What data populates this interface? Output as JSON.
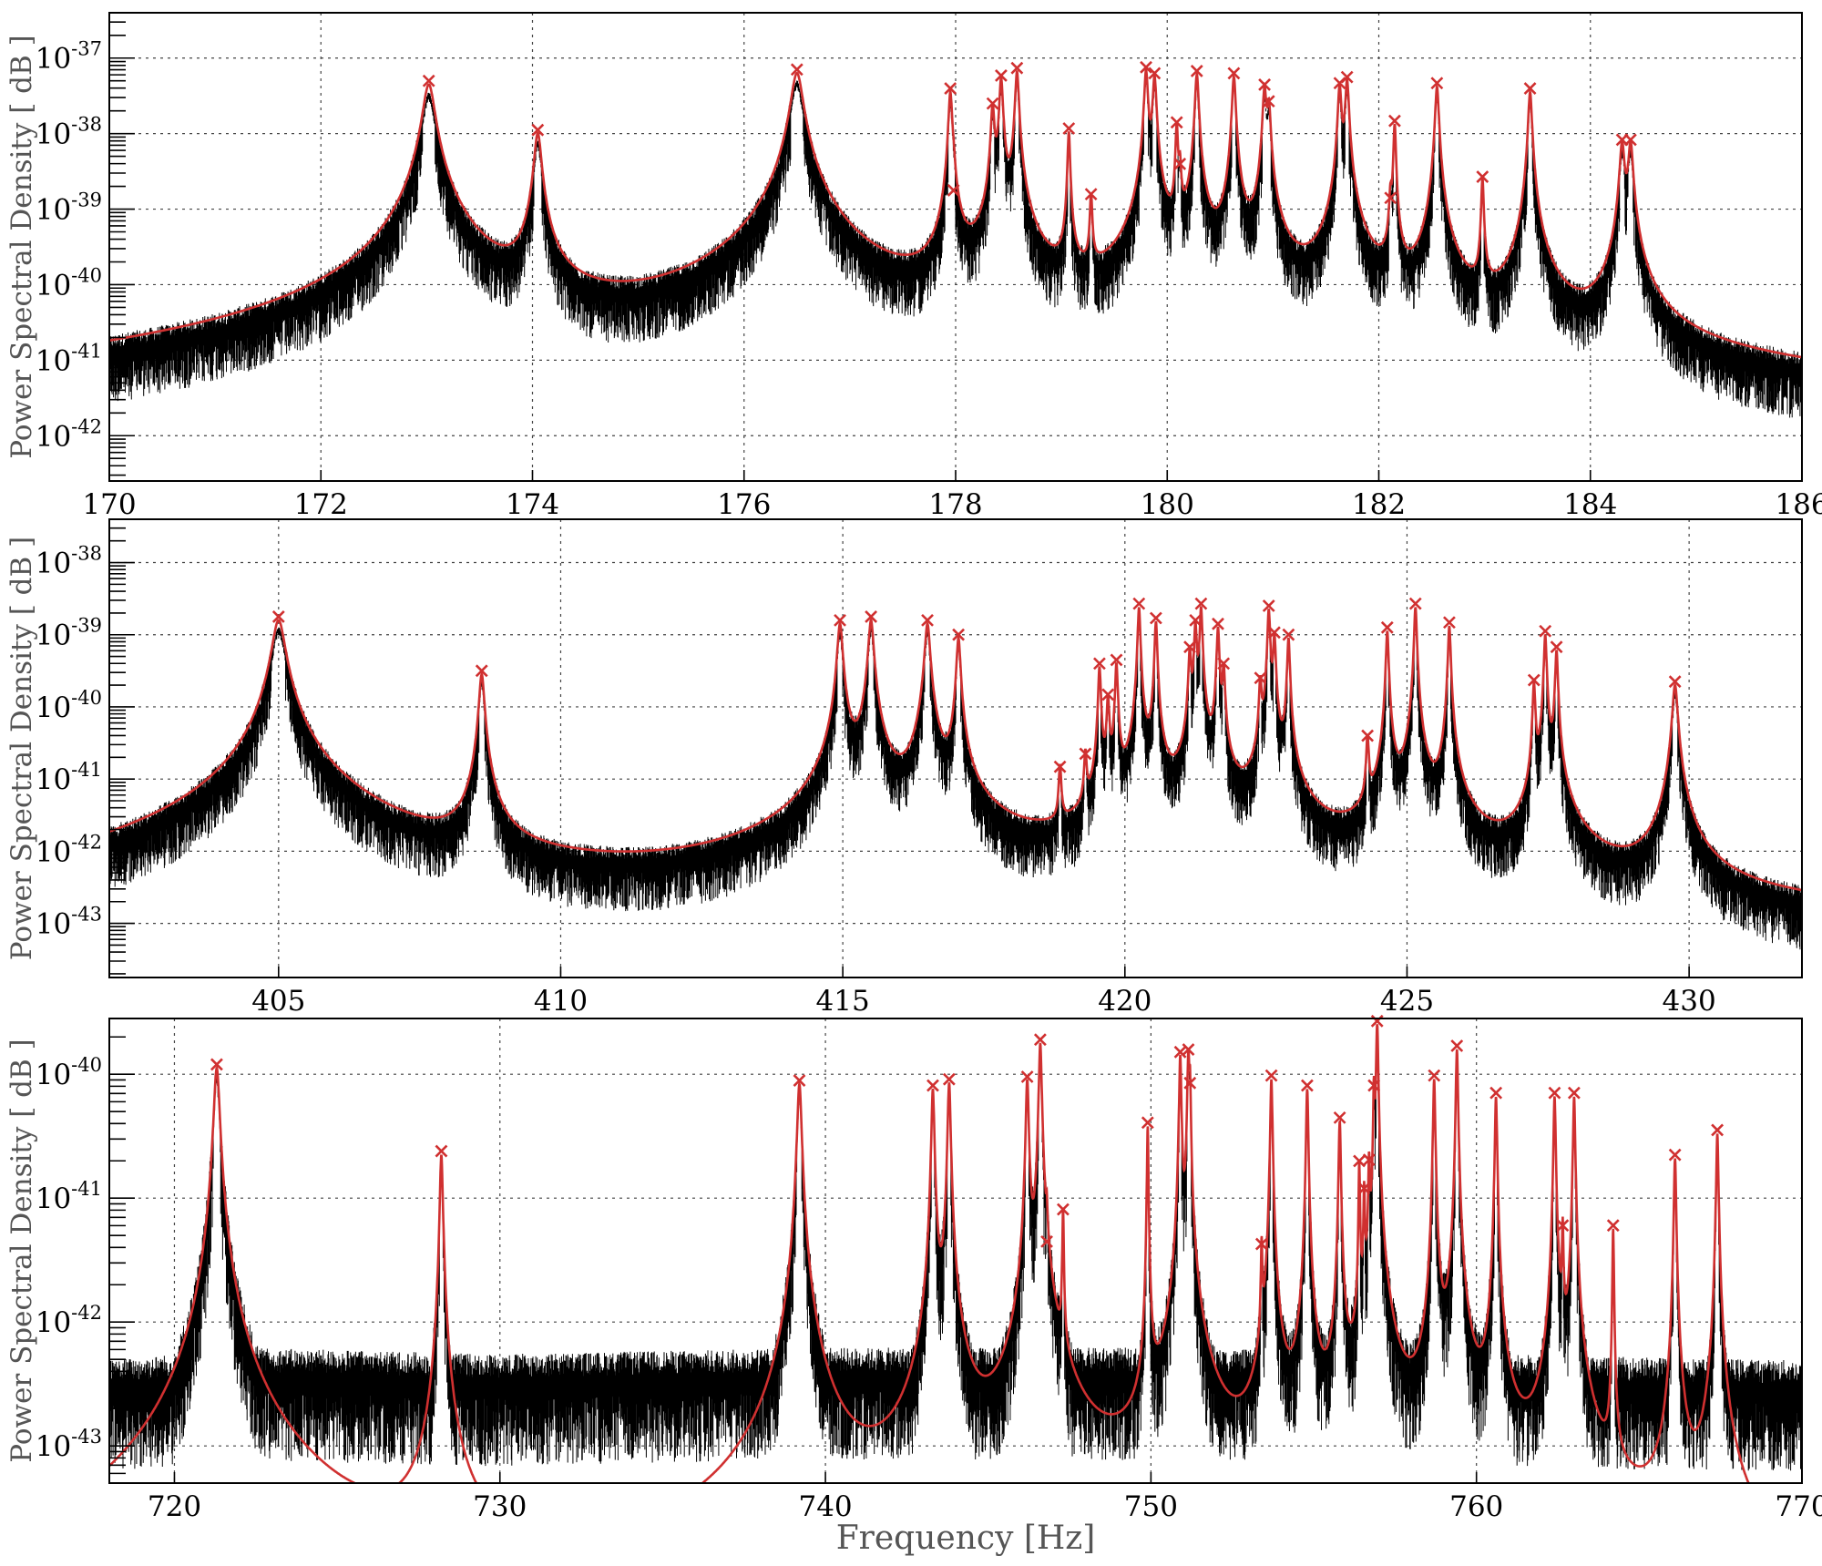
{
  "figure": {
    "xlabel": "Frequency [Hz]",
    "colors": {
      "data": "#000000",
      "fit": "#d03030",
      "marker": "#d03030"
    }
  },
  "chart_data": [
    {
      "type": "line",
      "ylabel": "Power Spectral Density [ dB ]",
      "xlim": [
        170,
        186
      ],
      "x_ticks": [
        170,
        172,
        174,
        176,
        178,
        180,
        182,
        184,
        186
      ],
      "y_scale": "log",
      "ylim_exp": [
        -42.6,
        -36.4
      ],
      "y_tick_exponents": [
        -42,
        -41,
        -40,
        -39,
        -38,
        -37
      ],
      "y_tick_labels": [
        "10-42",
        "10-41",
        "10-40",
        "10-39",
        "10-38",
        "10-37"
      ],
      "grid": true,
      "floor_exp": -42.75,
      "data_noise_floor_exp": [
        [
          170,
          -42.15
        ],
        [
          172,
          -41.9
        ],
        [
          174,
          -41.6
        ],
        [
          176,
          -41.4
        ],
        [
          178,
          -41.2
        ],
        [
          180,
          -41.2
        ],
        [
          182,
          -41.3
        ],
        [
          184,
          -41.4
        ],
        [
          186,
          -41.9
        ]
      ],
      "peaks": [
        {
          "f": 173.02,
          "exp": -37.35,
          "w": 0.05
        },
        {
          "f": 174.05,
          "exp": -38.0,
          "w": 0.03
        },
        {
          "f": 176.5,
          "exp": -37.2,
          "w": 0.05
        },
        {
          "f": 177.95,
          "exp": -37.45,
          "w": 0.015
        },
        {
          "f": 177.98,
          "exp": -38.8,
          "w": 0.01
        },
        {
          "f": 178.35,
          "exp": -37.65,
          "w": 0.015
        },
        {
          "f": 178.43,
          "exp": -37.28,
          "w": 0.015
        },
        {
          "f": 178.58,
          "exp": -37.18,
          "w": 0.015
        },
        {
          "f": 179.07,
          "exp": -37.98,
          "w": 0.01
        },
        {
          "f": 179.28,
          "exp": -38.85,
          "w": 0.01
        },
        {
          "f": 179.8,
          "exp": -37.17,
          "w": 0.015
        },
        {
          "f": 179.88,
          "exp": -37.25,
          "w": 0.015
        },
        {
          "f": 180.09,
          "exp": -37.9,
          "w": 0.01
        },
        {
          "f": 180.12,
          "exp": -38.45,
          "w": 0.01
        },
        {
          "f": 180.28,
          "exp": -37.22,
          "w": 0.015
        },
        {
          "f": 180.63,
          "exp": -37.25,
          "w": 0.015
        },
        {
          "f": 180.92,
          "exp": -37.4,
          "w": 0.015
        },
        {
          "f": 180.96,
          "exp": -37.62,
          "w": 0.015
        },
        {
          "f": 181.63,
          "exp": -37.38,
          "w": 0.015
        },
        {
          "f": 181.7,
          "exp": -37.3,
          "w": 0.015
        },
        {
          "f": 182.11,
          "exp": -38.9,
          "w": 0.01
        },
        {
          "f": 182.15,
          "exp": -37.88,
          "w": 0.01
        },
        {
          "f": 182.55,
          "exp": -37.38,
          "w": 0.015
        },
        {
          "f": 182.98,
          "exp": -38.62,
          "w": 0.01
        },
        {
          "f": 183.43,
          "exp": -37.45,
          "w": 0.015
        },
        {
          "f": 184.3,
          "exp": -38.13,
          "w": 0.02
        },
        {
          "f": 184.38,
          "exp": -38.13,
          "w": 0.02
        }
      ]
    },
    {
      "type": "line",
      "ylabel": "Power Spectral Density [ dB ]",
      "xlim": [
        402,
        432
      ],
      "x_ticks": [
        405,
        410,
        415,
        420,
        425,
        430
      ],
      "y_scale": "log",
      "ylim_exp": [
        -43.75,
        -37.4
      ],
      "y_tick_exponents": [
        -43,
        -42,
        -41,
        -40,
        -39,
        -38
      ],
      "y_tick_labels": [
        "10-43",
        "10-42",
        "10-41",
        "10-40",
        "10-39",
        "10-38"
      ],
      "grid": true,
      "floor_exp": -43.4,
      "data_noise_floor_exp": [
        [
          402,
          -41.9
        ],
        [
          405,
          -42.6
        ],
        [
          408,
          -42.75
        ],
        [
          410,
          -42.85
        ],
        [
          414,
          -42.8
        ],
        [
          418,
          -42.3
        ],
        [
          421,
          -41.6
        ],
        [
          424,
          -42.0
        ],
        [
          428,
          -42.6
        ],
        [
          432,
          -42.85
        ]
      ],
      "peaks": [
        {
          "f": 405.0,
          "exp": -38.8,
          "w": 0.1
        },
        {
          "f": 408.6,
          "exp": -39.55,
          "w": 0.04
        },
        {
          "f": 414.95,
          "exp": -38.85,
          "w": 0.04
        },
        {
          "f": 415.5,
          "exp": -38.8,
          "w": 0.04
        },
        {
          "f": 416.5,
          "exp": -38.85,
          "w": 0.04
        },
        {
          "f": 417.05,
          "exp": -39.05,
          "w": 0.03
        },
        {
          "f": 418.85,
          "exp": -40.88,
          "w": 0.02
        },
        {
          "f": 419.3,
          "exp": -40.7,
          "w": 0.02
        },
        {
          "f": 419.55,
          "exp": -39.45,
          "w": 0.02
        },
        {
          "f": 419.7,
          "exp": -39.88,
          "w": 0.02
        },
        {
          "f": 419.85,
          "exp": -39.4,
          "w": 0.02
        },
        {
          "f": 420.25,
          "exp": -38.62,
          "w": 0.02
        },
        {
          "f": 420.55,
          "exp": -38.82,
          "w": 0.02
        },
        {
          "f": 421.15,
          "exp": -39.22,
          "w": 0.02
        },
        {
          "f": 421.25,
          "exp": -38.85,
          "w": 0.02
        },
        {
          "f": 421.35,
          "exp": -38.62,
          "w": 0.02
        },
        {
          "f": 421.65,
          "exp": -38.9,
          "w": 0.02
        },
        {
          "f": 421.75,
          "exp": -39.45,
          "w": 0.02
        },
        {
          "f": 422.4,
          "exp": -39.65,
          "w": 0.02
        },
        {
          "f": 422.55,
          "exp": -38.65,
          "w": 0.02
        },
        {
          "f": 422.65,
          "exp": -39.02,
          "w": 0.02
        },
        {
          "f": 422.9,
          "exp": -39.05,
          "w": 0.02
        },
        {
          "f": 424.3,
          "exp": -40.45,
          "w": 0.02
        },
        {
          "f": 424.65,
          "exp": -38.95,
          "w": 0.02
        },
        {
          "f": 425.15,
          "exp": -38.62,
          "w": 0.02
        },
        {
          "f": 425.75,
          "exp": -38.88,
          "w": 0.02
        },
        {
          "f": 427.25,
          "exp": -39.68,
          "w": 0.02
        },
        {
          "f": 427.45,
          "exp": -39.0,
          "w": 0.02
        },
        {
          "f": 427.65,
          "exp": -39.22,
          "w": 0.02
        },
        {
          "f": 429.75,
          "exp": -39.7,
          "w": 0.04
        }
      ]
    },
    {
      "type": "line",
      "ylabel": "Power Spectral Density [ dB ]",
      "xlim": [
        718,
        770
      ],
      "x_ticks": [
        720,
        730,
        740,
        750,
        760,
        770
      ],
      "y_scale": "log",
      "ylim_exp": [
        -43.3,
        -39.55
      ],
      "y_tick_exponents": [
        -43,
        -42,
        -41,
        -40
      ],
      "y_tick_labels": [
        "10-43",
        "10-42",
        "10-41",
        "10-40"
      ],
      "grid": true,
      "floor_exp": -45.5,
      "data_noise_floor_exp": [
        [
          718,
          -42.5
        ],
        [
          722,
          -42.4
        ],
        [
          730,
          -42.45
        ],
        [
          740,
          -42.4
        ],
        [
          750,
          -42.4
        ],
        [
          760,
          -42.45
        ],
        [
          770,
          -42.5
        ]
      ],
      "peaks": [
        {
          "f": 721.3,
          "exp": -39.95,
          "w": 0.08
        },
        {
          "f": 728.2,
          "exp": -40.65,
          "w": 0.04
        },
        {
          "f": 739.2,
          "exp": -40.08,
          "w": 0.06
        },
        {
          "f": 743.3,
          "exp": -40.12,
          "w": 0.04
        },
        {
          "f": 743.8,
          "exp": -40.07,
          "w": 0.04
        },
        {
          "f": 746.2,
          "exp": -40.05,
          "w": 0.04
        },
        {
          "f": 746.6,
          "exp": -39.75,
          "w": 0.04
        },
        {
          "f": 746.8,
          "exp": -41.38,
          "w": 0.02
        },
        {
          "f": 747.3,
          "exp": -41.12,
          "w": 0.02
        },
        {
          "f": 749.9,
          "exp": -40.42,
          "w": 0.02
        },
        {
          "f": 750.9,
          "exp": -39.85,
          "w": 0.03
        },
        {
          "f": 751.15,
          "exp": -39.83,
          "w": 0.03
        },
        {
          "f": 751.2,
          "exp": -40.1,
          "w": 0.02
        },
        {
          "f": 753.4,
          "exp": -41.4,
          "w": 0.02
        },
        {
          "f": 753.7,
          "exp": -40.04,
          "w": 0.03
        },
        {
          "f": 754.8,
          "exp": -40.12,
          "w": 0.03
        },
        {
          "f": 755.8,
          "exp": -40.38,
          "w": 0.03
        },
        {
          "f": 756.4,
          "exp": -40.73,
          "w": 0.02
        },
        {
          "f": 756.55,
          "exp": -40.95,
          "w": 0.02
        },
        {
          "f": 756.7,
          "exp": -40.72,
          "w": 0.02
        },
        {
          "f": 756.85,
          "exp": -40.12,
          "w": 0.02
        },
        {
          "f": 756.95,
          "exp": -39.6,
          "w": 0.03
        },
        {
          "f": 758.7,
          "exp": -40.04,
          "w": 0.03
        },
        {
          "f": 759.4,
          "exp": -39.8,
          "w": 0.03
        },
        {
          "f": 760.6,
          "exp": -40.18,
          "w": 0.03
        },
        {
          "f": 762.4,
          "exp": -40.18,
          "w": 0.03
        },
        {
          "f": 762.65,
          "exp": -41.25,
          "w": 0.02
        },
        {
          "f": 763.0,
          "exp": -40.18,
          "w": 0.03
        },
        {
          "f": 764.2,
          "exp": -41.25,
          "w": 0.02
        },
        {
          "f": 766.1,
          "exp": -40.68,
          "w": 0.03
        },
        {
          "f": 767.4,
          "exp": -40.48,
          "w": 0.03
        }
      ]
    }
  ]
}
